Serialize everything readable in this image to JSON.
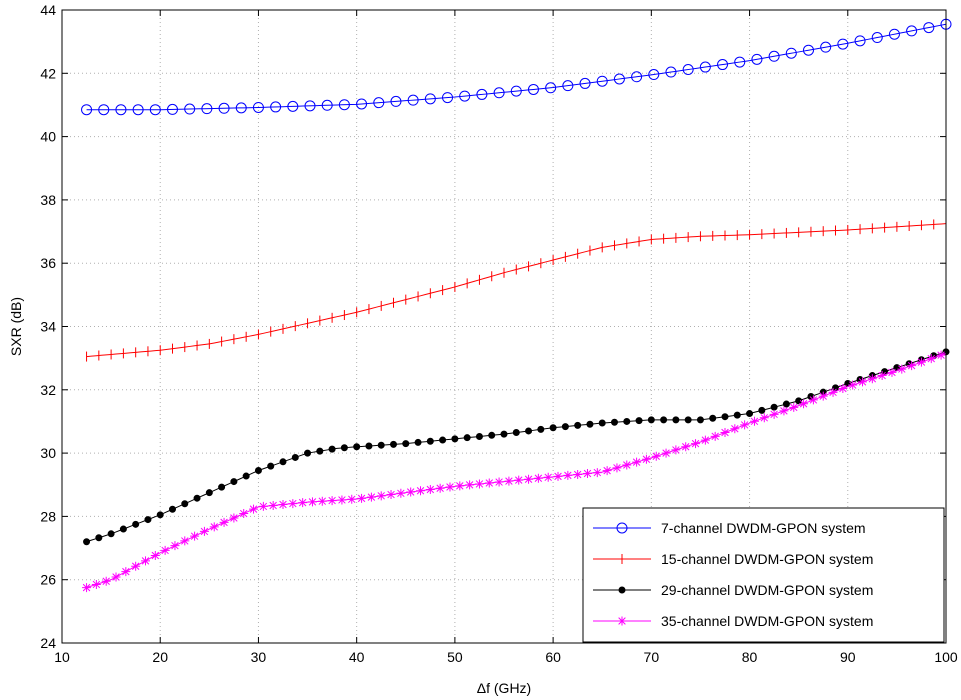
{
  "chart_data": {
    "type": "line",
    "xlabel": "Δf (GHz)",
    "ylabel": "SXR (dB)",
    "xlim": [
      10,
      100
    ],
    "ylim": [
      24,
      44
    ],
    "xticks": [
      10,
      20,
      30,
      40,
      50,
      60,
      70,
      80,
      90,
      100
    ],
    "yticks": [
      24,
      26,
      28,
      30,
      32,
      34,
      36,
      38,
      40,
      42,
      44
    ],
    "grid": true,
    "legend_position": "bottom-right",
    "series": [
      {
        "name": "7-channel DWDM-GPON system",
        "color": "#0000ff",
        "marker": "circle-open",
        "x": [
          12.5,
          20,
          30,
          40,
          50,
          60,
          70,
          80,
          90,
          100
        ],
        "y": [
          40.85,
          40.85,
          40.92,
          41.02,
          41.25,
          41.55,
          41.95,
          42.4,
          42.95,
          43.55
        ]
      },
      {
        "name": "15-channel DWDM-GPON system",
        "color": "#ff0000",
        "marker": "plus-tick",
        "x": [
          12.5,
          20,
          25,
          30,
          35,
          40,
          45,
          50,
          55,
          60,
          65,
          70,
          75,
          80,
          90,
          100
        ],
        "y": [
          33.05,
          33.25,
          33.45,
          33.75,
          34.1,
          34.45,
          34.85,
          35.25,
          35.7,
          36.1,
          36.5,
          36.75,
          36.85,
          36.9,
          37.05,
          37.25
        ]
      },
      {
        "name": "29-channel DWDM-GPON system",
        "color": "#000000",
        "marker": "dot",
        "x": [
          12.5,
          15,
          20,
          25,
          30,
          35,
          38,
          40,
          45,
          50,
          55,
          60,
          65,
          70,
          75,
          80,
          85,
          90,
          95,
          100
        ],
        "y": [
          27.2,
          27.45,
          28.05,
          28.75,
          29.45,
          30.0,
          30.15,
          30.2,
          30.3,
          30.45,
          30.6,
          30.8,
          30.95,
          31.05,
          31.05,
          31.25,
          31.65,
          32.2,
          32.7,
          33.2
        ]
      },
      {
        "name": "35-channel DWDM-GPON system",
        "color": "#ff00ff",
        "marker": "asterisk",
        "x": [
          12.5,
          15,
          20,
          25,
          30,
          35,
          40,
          45,
          50,
          55,
          60,
          65,
          70,
          75,
          80,
          85,
          90,
          95,
          100
        ],
        "y": [
          25.75,
          26.0,
          26.85,
          27.6,
          28.3,
          28.45,
          28.55,
          28.75,
          28.95,
          29.1,
          29.25,
          29.4,
          29.85,
          30.35,
          30.95,
          31.5,
          32.1,
          32.6,
          33.15
        ]
      }
    ]
  }
}
